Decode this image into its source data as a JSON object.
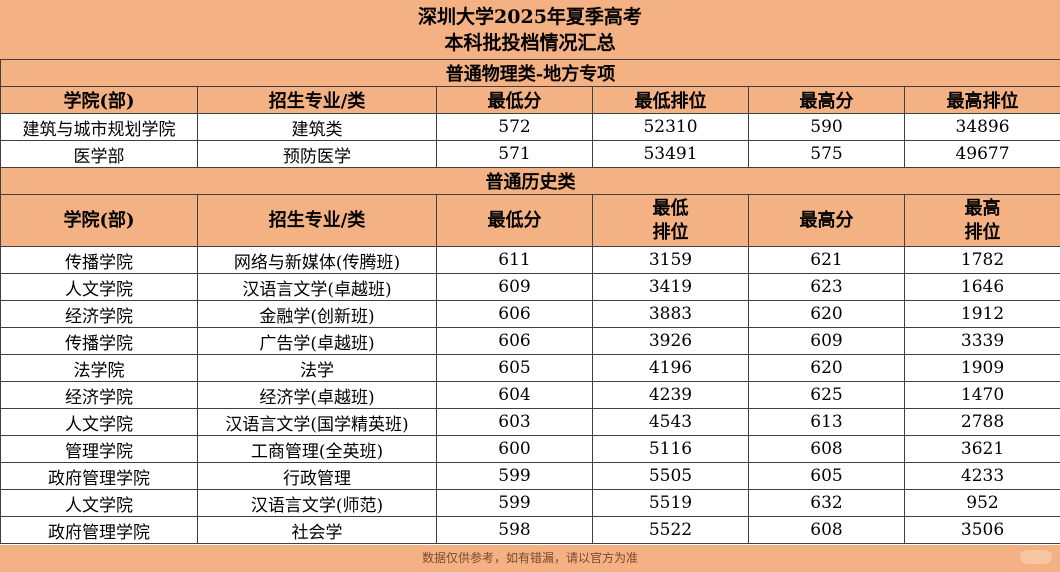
{
  "title": {
    "line1": "深圳大学2025年夏季高考",
    "line2": "本科批投档情况汇总"
  },
  "sections": [
    {
      "name": "普通物理类-地方专项",
      "headers": [
        "学院(部)",
        "招生专业/类",
        "最低分",
        "最低排位",
        "最高分",
        "最高排位"
      ],
      "rows": [
        [
          "建筑与城市规划学院",
          "建筑类",
          "572",
          "52310",
          "590",
          "34896"
        ],
        [
          "医学部",
          "预防医学",
          "571",
          "53491",
          "575",
          "49677"
        ]
      ]
    },
    {
      "name": "普通历史类",
      "headers": [
        "学院(部)",
        "招生专业/类",
        "最低分",
        "最低\n排位",
        "最高分",
        "最高\n排位"
      ],
      "rows": [
        [
          "传播学院",
          "网络与新媒体(传腾班)",
          "611",
          "3159",
          "621",
          "1782"
        ],
        [
          "人文学院",
          "汉语言文学(卓越班)",
          "609",
          "3419",
          "623",
          "1646"
        ],
        [
          "经济学院",
          "金融学(创新班)",
          "606",
          "3883",
          "620",
          "1912"
        ],
        [
          "传播学院",
          "广告学(卓越班)",
          "606",
          "3926",
          "609",
          "3339"
        ],
        [
          "法学院",
          "法学",
          "605",
          "4196",
          "620",
          "1909"
        ],
        [
          "经济学院",
          "经济学(卓越班)",
          "604",
          "4239",
          "625",
          "1470"
        ],
        [
          "人文学院",
          "汉语言文学(国学精英班)",
          "603",
          "4543",
          "613",
          "2788"
        ],
        [
          "管理学院",
          "工商管理(全英班)",
          "600",
          "5116",
          "608",
          "3621"
        ],
        [
          "政府管理学院",
          "行政管理",
          "599",
          "5505",
          "605",
          "4233"
        ],
        [
          "人文学院",
          "汉语言文学(师范)",
          "599",
          "5519",
          "632",
          "952"
        ],
        [
          "政府管理学院",
          "社会学",
          "598",
          "5522",
          "608",
          "3506"
        ]
      ]
    }
  ],
  "footer": "数据仅供参考，如有错漏，请以官方为准",
  "colors": {
    "header_fill": "#f4b183",
    "border": "#404040"
  }
}
